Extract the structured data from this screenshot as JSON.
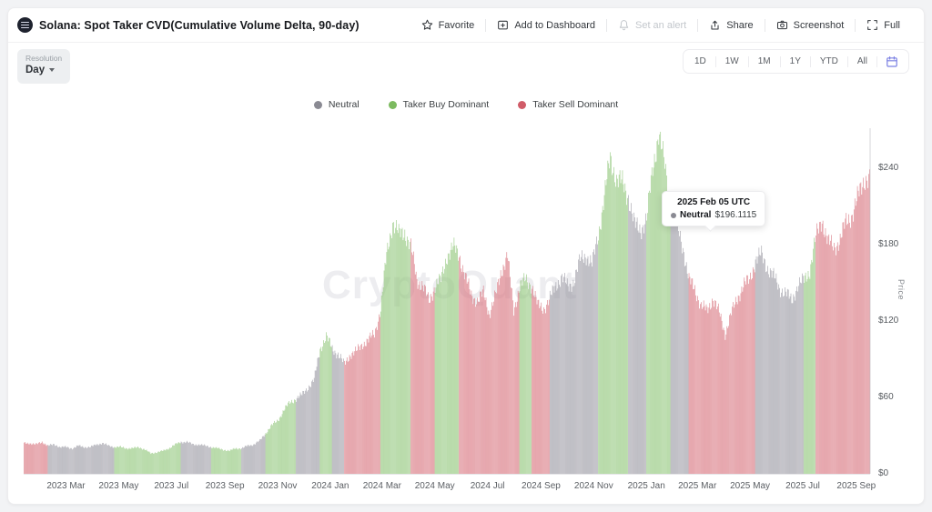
{
  "header": {
    "title": "Solana: Spot Taker CVD(Cumulative Volume Delta, 90-day)",
    "actions": [
      {
        "label": "Favorite",
        "icon": "star-icon",
        "disabled": false
      },
      {
        "label": "Add to Dashboard",
        "icon": "dashboard-add-icon",
        "disabled": false
      },
      {
        "label": "Set an alert",
        "icon": "bell-icon",
        "disabled": true
      },
      {
        "label": "Share",
        "icon": "share-icon",
        "disabled": false
      },
      {
        "label": "Screenshot",
        "icon": "camera-icon",
        "disabled": false
      },
      {
        "label": "Full",
        "icon": "fullscreen-icon",
        "disabled": false
      }
    ]
  },
  "toolbar": {
    "resolution_label": "Resolution",
    "resolution_value": "Day",
    "ranges": [
      "1D",
      "1W",
      "1M",
      "1Y",
      "YTD",
      "All"
    ],
    "calendar_accent": "#7b80e3"
  },
  "legend": [
    {
      "key": "n",
      "label": "Neutral",
      "color": "#8a8a93"
    },
    {
      "key": "b",
      "label": "Taker Buy Dominant",
      "color": "#7cba5f"
    },
    {
      "key": "s",
      "label": "Taker Sell Dominant",
      "color": "#d05c68"
    }
  ],
  "tooltip": {
    "date": "2025 Feb 05 UTC",
    "series": "Neutral",
    "value": "$196.1115",
    "dot_color": "#8a8a93"
  },
  "watermark": "CryptoQuant",
  "chart_data": {
    "type": "bar",
    "title": "Solana: Spot Taker CVD(Cumulative Volume Delta, 90-day)",
    "xlabel": "",
    "ylabel": "Price",
    "ylim": [
      0,
      272
    ],
    "grid": false,
    "legend_position": "top-center",
    "y_ticks": [
      {
        "label": "$0",
        "value": 0
      },
      {
        "label": "$60",
        "value": 60
      },
      {
        "label": "$120",
        "value": 120
      },
      {
        "label": "$180",
        "value": 180
      },
      {
        "label": "$240",
        "value": 240
      }
    ],
    "x_ticks": [
      "2023 Mar",
      "2023 May",
      "2023 Jul",
      "2023 Sep",
      "2023 Nov",
      "2024 Jan",
      "2024 Mar",
      "2024 May",
      "2024 Jul",
      "2024 Sep",
      "2024 Nov",
      "2025 Jan",
      "2025 Mar",
      "2025 May",
      "2025 Jul",
      "2025 Sep"
    ],
    "series_names": {
      "n": "Neutral",
      "b": "Taker Buy Dominant",
      "s": "Taker Sell Dominant"
    },
    "series_colors": {
      "n": "#9a99a3",
      "b": "#8fc678",
      "s": "#d8737e"
    },
    "start_date": "2023-01-15",
    "interval_days": 7,
    "point_format": "[price_usd, category]",
    "weekly_points": [
      [
        24,
        "s"
      ],
      [
        24,
        "s"
      ],
      [
        23,
        "s"
      ],
      [
        25,
        "s"
      ],
      [
        22,
        "n"
      ],
      [
        23,
        "n"
      ],
      [
        21,
        "n"
      ],
      [
        21,
        "n"
      ],
      [
        20,
        "n"
      ],
      [
        22,
        "n"
      ],
      [
        21,
        "n"
      ],
      [
        21,
        "n"
      ],
      [
        23,
        "n"
      ],
      [
        24,
        "n"
      ],
      [
        22,
        "n"
      ],
      [
        21,
        "b"
      ],
      [
        21,
        "b"
      ],
      [
        20,
        "b"
      ],
      [
        20,
        "b"
      ],
      [
        21,
        "b"
      ],
      [
        19,
        "b"
      ],
      [
        16,
        "b"
      ],
      [
        17,
        "b"
      ],
      [
        18,
        "b"
      ],
      [
        20,
        "b"
      ],
      [
        23,
        "b"
      ],
      [
        25,
        "n"
      ],
      [
        25,
        "n"
      ],
      [
        23,
        "n"
      ],
      [
        23,
        "n"
      ],
      [
        22,
        "n"
      ],
      [
        21,
        "b"
      ],
      [
        20,
        "b"
      ],
      [
        19,
        "b"
      ],
      [
        18,
        "b"
      ],
      [
        20,
        "b"
      ],
      [
        20,
        "n"
      ],
      [
        22,
        "n"
      ],
      [
        23,
        "n"
      ],
      [
        26,
        "n"
      ],
      [
        32,
        "b"
      ],
      [
        38,
        "b"
      ],
      [
        42,
        "b"
      ],
      [
        50,
        "b"
      ],
      [
        56,
        "b"
      ],
      [
        59,
        "n"
      ],
      [
        62,
        "n"
      ],
      [
        68,
        "n"
      ],
      [
        74,
        "n"
      ],
      [
        98,
        "b"
      ],
      [
        108,
        "b"
      ],
      [
        98,
        "n"
      ],
      [
        94,
        "n"
      ],
      [
        86,
        "s"
      ],
      [
        94,
        "s"
      ],
      [
        96,
        "s"
      ],
      [
        102,
        "s"
      ],
      [
        105,
        "s"
      ],
      [
        110,
        "s"
      ],
      [
        130,
        "b"
      ],
      [
        172,
        "b"
      ],
      [
        198,
        "b"
      ],
      [
        188,
        "b"
      ],
      [
        190,
        "b"
      ],
      [
        178,
        "s"
      ],
      [
        152,
        "s"
      ],
      [
        148,
        "s"
      ],
      [
        135,
        "s"
      ],
      [
        148,
        "b"
      ],
      [
        152,
        "b"
      ],
      [
        172,
        "b"
      ],
      [
        178,
        "b"
      ],
      [
        172,
        "s"
      ],
      [
        155,
        "s"
      ],
      [
        140,
        "s"
      ],
      [
        136,
        "s"
      ],
      [
        142,
        "s"
      ],
      [
        126,
        "s"
      ],
      [
        140,
        "s"
      ],
      [
        160,
        "s"
      ],
      [
        172,
        "s"
      ],
      [
        128,
        "s"
      ],
      [
        148,
        "b"
      ],
      [
        152,
        "b"
      ],
      [
        148,
        "s"
      ],
      [
        132,
        "s"
      ],
      [
        130,
        "s"
      ],
      [
        138,
        "n"
      ],
      [
        148,
        "n"
      ],
      [
        155,
        "n"
      ],
      [
        146,
        "n"
      ],
      [
        152,
        "n"
      ],
      [
        168,
        "n"
      ],
      [
        172,
        "n"
      ],
      [
        164,
        "n"
      ],
      [
        188,
        "b"
      ],
      [
        218,
        "b"
      ],
      [
        248,
        "b"
      ],
      [
        232,
        "b"
      ],
      [
        228,
        "b"
      ],
      [
        218,
        "n"
      ],
      [
        195,
        "n"
      ],
      [
        192,
        "n"
      ],
      [
        200,
        "b"
      ],
      [
        240,
        "b"
      ],
      [
        268,
        "b"
      ],
      [
        242,
        "b"
      ],
      [
        205,
        "n"
      ],
      [
        196,
        "n"
      ],
      [
        178,
        "n"
      ],
      [
        152,
        "s"
      ],
      [
        145,
        "s"
      ],
      [
        132,
        "s"
      ],
      [
        128,
        "s"
      ],
      [
        138,
        "s"
      ],
      [
        126,
        "s"
      ],
      [
        110,
        "s"
      ],
      [
        126,
        "s"
      ],
      [
        138,
        "s"
      ],
      [
        148,
        "s"
      ],
      [
        152,
        "s"
      ],
      [
        168,
        "n"
      ],
      [
        172,
        "n"
      ],
      [
        162,
        "n"
      ],
      [
        155,
        "n"
      ],
      [
        146,
        "n"
      ],
      [
        142,
        "n"
      ],
      [
        136,
        "n"
      ],
      [
        148,
        "n"
      ],
      [
        152,
        "b"
      ],
      [
        160,
        "b"
      ],
      [
        186,
        "s"
      ],
      [
        200,
        "s"
      ],
      [
        182,
        "s"
      ],
      [
        178,
        "s"
      ],
      [
        184,
        "s"
      ],
      [
        198,
        "s"
      ],
      [
        204,
        "s"
      ],
      [
        218,
        "s"
      ],
      [
        232,
        "s"
      ]
    ]
  }
}
